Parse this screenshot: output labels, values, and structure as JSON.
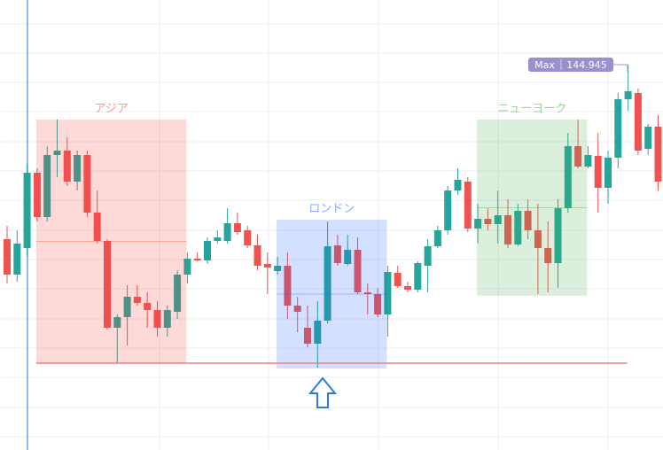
{
  "chart_data": {
    "type": "candlestick",
    "ylim": [
      142.77,
      145.31
    ],
    "up_color": "#26a69a",
    "down_color": "#ef5350",
    "open": [
      143.96,
      143.76,
      143.91,
      144.335,
      144.085,
      144.435,
      144.46,
      144.285,
      144.435,
      144.11,
      143.95,
      143.46,
      143.52,
      143.635,
      143.6,
      143.56,
      143.46,
      143.55,
      143.76,
      143.85,
      143.84,
      143.95,
      143.95,
      144.05,
      144.01,
      143.925,
      143.82,
      143.78,
      143.81,
      143.585,
      143.46,
      143.37,
      143.5,
      143.925,
      143.82,
      143.9,
      143.66,
      143.65,
      143.535,
      143.77,
      143.695,
      143.675,
      143.81,
      143.92,
      144.01,
      144.235,
      144.285,
      144.02,
      144.075,
      144.045,
      144.095,
      143.93,
      144.12,
      144.01,
      143.91,
      143.825,
      144.135,
      144.485,
      144.37,
      144.43,
      144.25,
      144.42,
      144.75,
      144.785,
      144.47,
      144.595
    ],
    "high": [
      144.035,
      144.01,
      144.385,
      144.36,
      144.485,
      144.635,
      144.535,
      144.46,
      144.46,
      144.235,
      143.96,
      143.535,
      143.7,
      143.7,
      143.66,
      143.61,
      143.585,
      143.785,
      143.885,
      143.885,
      143.97,
      144.01,
      144.135,
      144.11,
      144.035,
      143.985,
      143.885,
      143.86,
      143.885,
      143.635,
      143.585,
      143.61,
      144.06,
      143.985,
      143.985,
      143.97,
      143.71,
      143.685,
      143.81,
      143.81,
      143.72,
      143.835,
      143.96,
      144.035,
      144.26,
      144.36,
      144.31,
      144.16,
      144.135,
      144.235,
      144.185,
      144.16,
      144.185,
      144.16,
      144.06,
      144.185,
      144.56,
      144.635,
      144.485,
      144.56,
      144.46,
      144.785,
      144.945,
      144.81,
      144.61,
      144.66
    ],
    "low": [
      143.71,
      143.72,
      143.86,
      144.06,
      144.06,
      144.31,
      144.26,
      144.235,
      144.085,
      143.935,
      143.45,
      143.26,
      143.36,
      143.585,
      143.46,
      143.41,
      143.41,
      143.51,
      143.71,
      143.835,
      143.82,
      143.935,
      143.935,
      143.985,
      143.91,
      143.785,
      143.65,
      143.76,
      143.51,
      143.435,
      143.35,
      143.235,
      143.485,
      143.81,
      143.81,
      143.65,
      143.535,
      143.52,
      143.41,
      143.685,
      143.66,
      143.66,
      143.66,
      143.91,
      143.985,
      144.21,
      144.0,
      143.935,
      144.01,
      143.935,
      143.91,
      143.92,
      143.96,
      143.65,
      143.66,
      143.685,
      144.11,
      144.36,
      144.36,
      144.11,
      144.16,
      144.36,
      144.685,
      144.435,
      144.435,
      144.235
    ],
    "close": [
      143.76,
      143.935,
      144.335,
      144.085,
      144.435,
      144.46,
      144.285,
      144.435,
      144.11,
      143.95,
      143.46,
      143.52,
      143.635,
      143.6,
      143.56,
      143.46,
      143.56,
      143.76,
      143.85,
      143.84,
      143.95,
      143.97,
      144.05,
      144.0,
      143.925,
      143.81,
      143.8,
      143.81,
      143.585,
      143.55,
      143.37,
      143.5,
      143.92,
      143.825,
      143.9,
      143.66,
      143.65,
      143.535,
      143.775,
      143.695,
      143.675,
      143.825,
      143.92,
      144.01,
      144.235,
      144.295,
      144.02,
      144.075,
      144.045,
      144.095,
      143.93,
      144.12,
      144.01,
      143.91,
      143.825,
      144.135,
      144.485,
      144.37,
      144.435,
      144.25,
      144.42,
      144.75,
      144.795,
      144.46,
      144.595,
      144.285
    ],
    "sessions": [
      {
        "name": "アジア",
        "color": "#f44336",
        "high": 144.635,
        "low": 143.26
      },
      {
        "name": "ロンドン",
        "color": "#2962ff",
        "high": 144.07,
        "low": 143.23
      },
      {
        "name": "ニューヨーク",
        "color": "#4caf50",
        "high": 144.635,
        "low": 143.64
      }
    ],
    "support_line": 143.26,
    "max_label": "Max",
    "max_value": 144.945
  }
}
